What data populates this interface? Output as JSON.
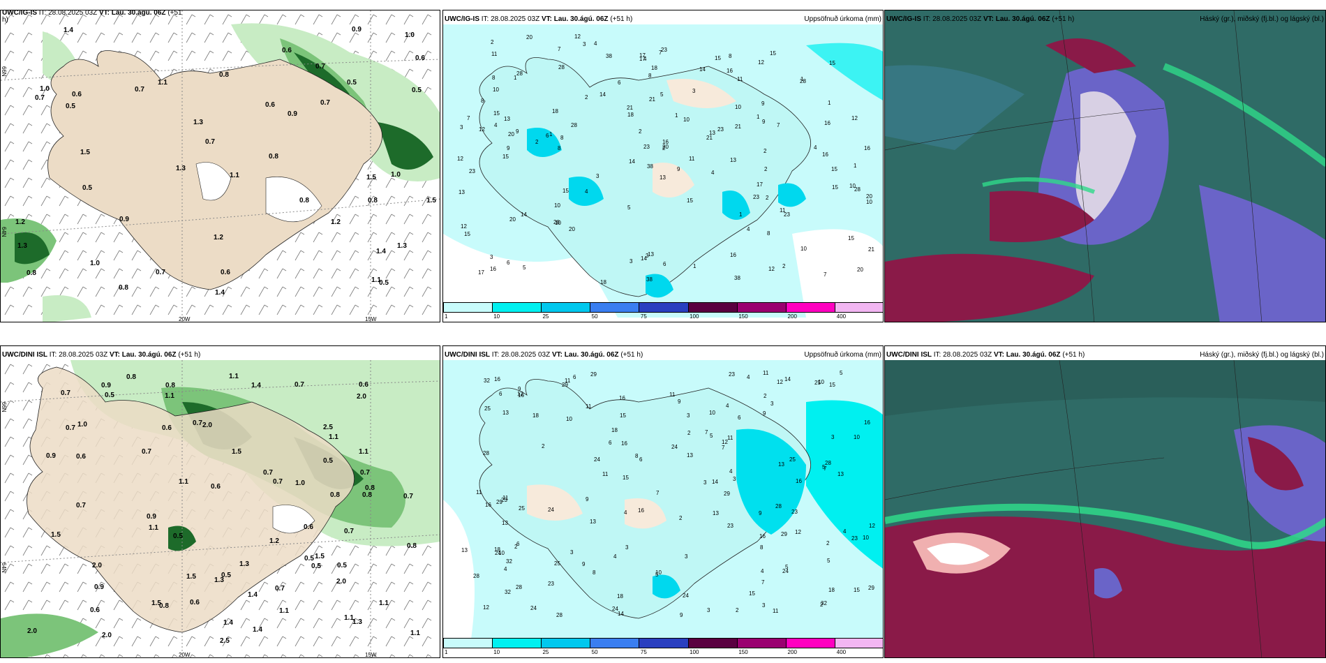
{
  "panels": {
    "tl": {
      "model": "UWC/IG-IS",
      "meta": " IT: 28.08.2025 03Z ",
      "vt": "VT: Lau. 30.ágú. 06Z",
      "lead": " (+51",
      "lead2": "h)",
      "right": ""
    },
    "tm": {
      "model": "UWC/IG-IS",
      "meta": " IT: 28.08.2025 03Z ",
      "vt": "VT: Lau. 30.ágú. 06Z",
      "lead": " (+51 h)",
      "right": "Uppsöfnuð úrkoma (mm)"
    },
    "tr": {
      "model": "UWC/IG-IS",
      "meta": " IT: 28.08.2025 03Z ",
      "vt": "VT: Lau. 30.ágú. 06Z",
      "lead": " (+51 h)",
      "right": "Háský (gr.), miðský (fj.bl.) og lágský (bl.)"
    },
    "bl": {
      "model": "UWC/DINI ISL",
      "meta": " IT: 28.08.2025 03Z ",
      "vt": "VT: Lau. 30.ágú. 06Z",
      "lead": " (+51 h)",
      "right": ""
    },
    "bm": {
      "model": "UWC/DINI ISL",
      "meta": " IT: 28.08.2025 03Z ",
      "vt": "VT: Lau. 30.ágú. 06Z",
      "lead": " (+51 h)",
      "right": "Uppsöfnuð úrkoma (mm)"
    },
    "br": {
      "model": "UWC/DINI ISL",
      "meta": " IT: 28.08.2025 03Z ",
      "vt": "VT: Lau. 30.ágú. 06Z",
      "lead": " (+51 h)",
      "right": "Háský (gr.), miðský (fj.bl.) og lágský (bl.)"
    }
  },
  "axes": {
    "lon1": "20W",
    "lon2": "15W",
    "lat1": "66N",
    "lat2": "64N"
  },
  "colorbar": {
    "labels": [
      "1",
      "10",
      "25",
      "50",
      "75",
      "100",
      "150",
      "200",
      "400"
    ],
    "colors": [
      "#c8fbfb",
      "#00f0f0",
      "#00c8ee",
      "#3a7ef0",
      "#2a3fc0",
      "#5a0040",
      "#9a0070",
      "#ff00c0",
      "#f2b6f2"
    ]
  },
  "precip_top_numbers": [
    "1",
    "4",
    "13",
    "10",
    "11",
    "16",
    "23",
    "28",
    "7",
    "15",
    "12",
    "8",
    "2",
    "3",
    "5",
    "6",
    "14",
    "21",
    "18",
    "20",
    "38",
    "9",
    "17"
  ],
  "precip_bottom_numbers": [
    "2",
    "3",
    "4",
    "15",
    "16",
    "23",
    "28",
    "25",
    "29",
    "32",
    "12",
    "13",
    "14",
    "18",
    "24",
    "10",
    "11",
    "7",
    "8",
    "9",
    "6",
    "5"
  ],
  "wind_top_values": [
    "0.5",
    "0.6",
    "0.7",
    "0.8",
    "0.9",
    "1.0",
    "1.1",
    "1.2",
    "1.3",
    "1.4",
    "1.5"
  ],
  "wind_bottom_values": [
    "0.5",
    "0.6",
    "0.7",
    "0.8",
    "0.9",
    "1.0",
    "1.1",
    "1.2",
    "1.3",
    "1.4",
    "1.5",
    "2.0",
    "2.5"
  ],
  "colors": {
    "land": "#ecdcc6",
    "light_green": "#c8ecc4",
    "mid_green": "#7cc47a",
    "dark_green": "#1d6b2a",
    "cloud_teal": "#2f6b66",
    "cloud_blue": "#6a64c8",
    "cloud_red": "#8a1a48",
    "cloud_green": "#2fd98a"
  }
}
